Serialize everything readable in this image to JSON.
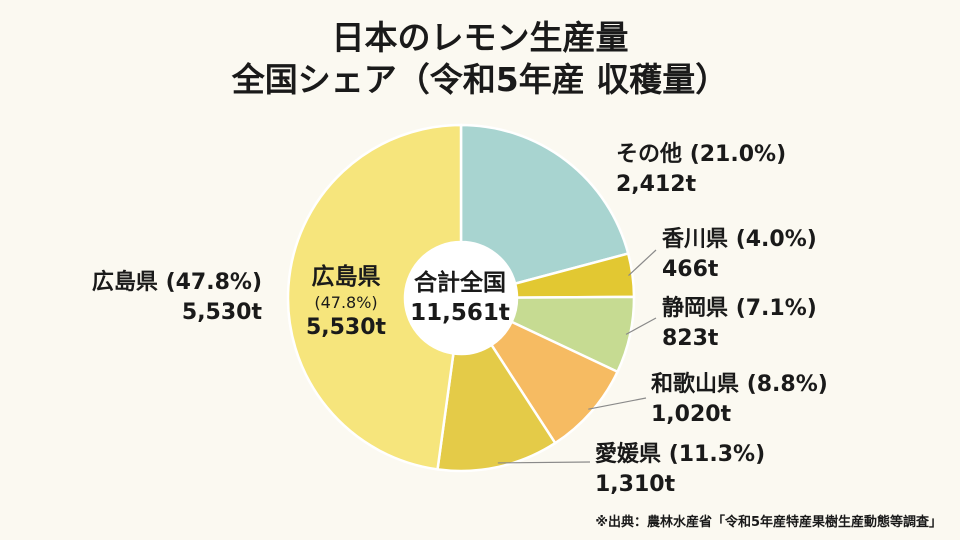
{
  "chart_data": {
    "type": "pie",
    "title": "日本のレモン生産量",
    "subtitle": "全国シェア（令和5年産 収穫量）",
    "center_label": "合計全国",
    "total_label": "11,561t",
    "slices": [
      {
        "name": "その他",
        "pct_label": "(21.0%)",
        "value_label": "2,412t",
        "value": 2412,
        "color": "#a8d4d0"
      },
      {
        "name": "香川県",
        "pct_label": "(4.0%)",
        "value_label": "466t",
        "value": 466,
        "color": "#e2c832"
      },
      {
        "name": "静岡県",
        "pct_label": "(7.1%)",
        "value_label": "823t",
        "value": 823,
        "color": "#c6db92"
      },
      {
        "name": "和歌山県",
        "pct_label": "(8.8%)",
        "value_label": "1,020t",
        "value": 1020,
        "color": "#f6bb62"
      },
      {
        "name": "愛媛県",
        "pct_label": "(11.3%)",
        "value_label": "1,310t",
        "value": 1310,
        "color": "#e4cb48"
      },
      {
        "name": "広島県",
        "pct_label": "(47.8%)",
        "value_label": "5,530t",
        "value": 5530,
        "color": "#f6e57c"
      }
    ],
    "inner_label": {
      "name": "広島県",
      "pct_label": "(47.8%)",
      "value_label": "5,530t"
    }
  },
  "source": "※出典：農林水産省「令和5年産特産果樹生産動態等調査」"
}
